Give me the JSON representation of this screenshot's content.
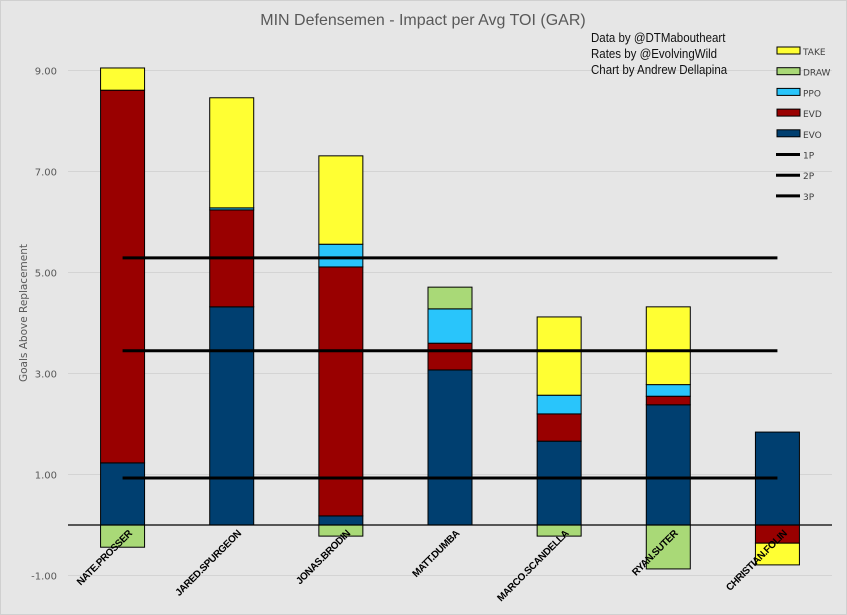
{
  "chart_data": {
    "type": "bar",
    "stacked": true,
    "title": "MIN Defensemen - Impact per Avg TOI (GAR)",
    "xlabel": "",
    "ylabel": "Goals Above Replacement",
    "ylim": [
      -1.3,
      9.6
    ],
    "yticks": [
      -1.0,
      1.0,
      3.0,
      5.0,
      7.0,
      9.0
    ],
    "ytick_labels": [
      "-1.00",
      "1.00",
      "3.00",
      "5.00",
      "7.00",
      "9.00"
    ],
    "grid": true,
    "legend_position": "top-right",
    "categories": [
      "NATE.PROSSER",
      "JARED.SPURGEON",
      "JONAS.BRODIN",
      "MATT.DUMBA",
      "MARCO.SCANDELLA",
      "RYAN.SUTER",
      "CHRISTIAN.FOLIN"
    ],
    "series": [
      {
        "name": "EVO",
        "color": "#003f70",
        "values": [
          1.23,
          4.32,
          0.18,
          3.07,
          1.66,
          2.38,
          1.84
        ]
      },
      {
        "name": "EVD",
        "color": "#990000",
        "values": [
          7.38,
          1.92,
          4.93,
          0.53,
          0.54,
          0.17,
          -0.36
        ]
      },
      {
        "name": "PPO",
        "color": "#29c5fb",
        "values": [
          0.0,
          0.04,
          0.45,
          0.68,
          0.37,
          0.23,
          0.0
        ]
      },
      {
        "name": "DRAW",
        "color": "#a9d977",
        "values": [
          -0.44,
          0.0,
          -0.22,
          0.43,
          -0.22,
          -0.87,
          0.0
        ]
      },
      {
        "name": "TAKE",
        "color": "#ffff33",
        "values": [
          0.44,
          2.18,
          1.75,
          0.0,
          1.55,
          1.54,
          -0.43
        ]
      }
    ],
    "reference_lines": [
      {
        "name": "1P",
        "value": 5.29,
        "color": "#000000"
      },
      {
        "name": "2P",
        "value": 3.45,
        "color": "#000000"
      },
      {
        "name": "3P",
        "value": 0.93,
        "color": "#000000"
      }
    ],
    "legend_order": [
      "TAKE",
      "DRAW",
      "PPO",
      "EVD",
      "EVO",
      "1P",
      "2P",
      "3P"
    ],
    "annotations": [
      "Data by @DTMaboutheart",
      "Rates by @EvolvingWild",
      "Chart by Andrew Dellapina"
    ]
  }
}
